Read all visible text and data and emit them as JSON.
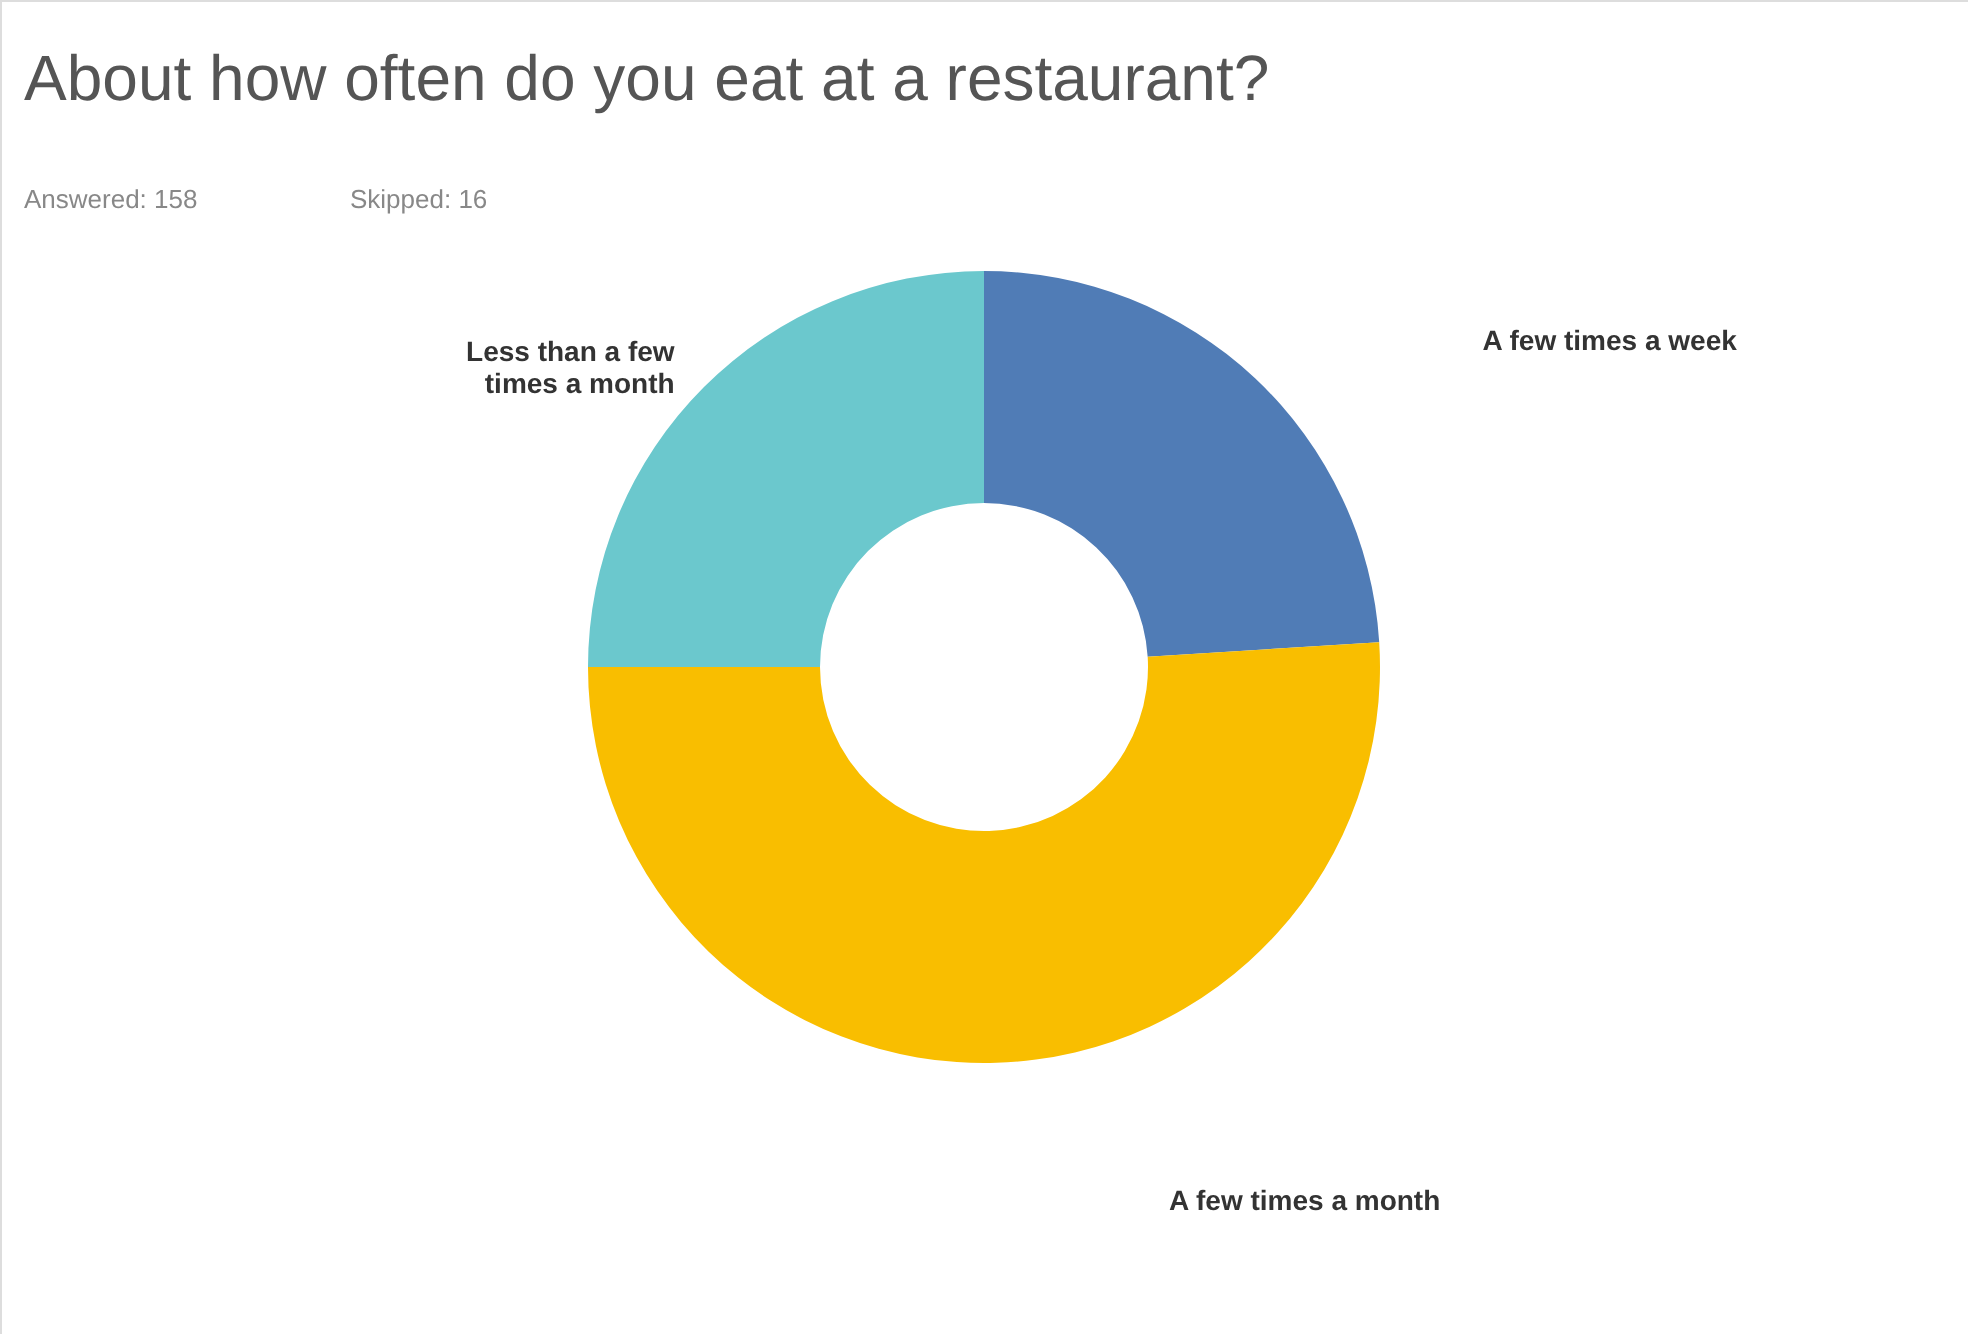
{
  "chart_data": {
    "type": "donut",
    "title": "About how often do you eat at a restaurant?",
    "subtitle": "Answered: 158",
    "annotations": [
      "Skipped: 16"
    ],
    "categories": [
      "A few times a week",
      "A few times a month",
      "Less than a few times a month"
    ],
    "values": [
      24,
      51,
      25
    ],
    "colors": [
      "#507cb6",
      "#f9be00",
      "#6bc8cd"
    ]
  }
}
